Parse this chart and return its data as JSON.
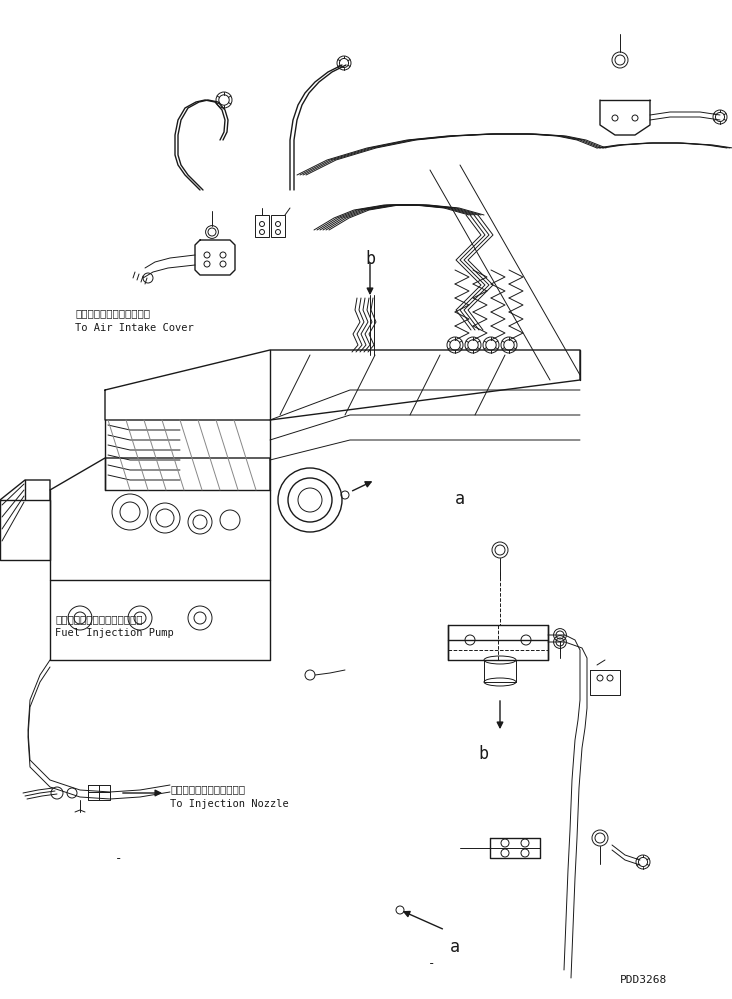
{
  "bg_color": "#ffffff",
  "line_color": "#1a1a1a",
  "fig_width": 7.32,
  "fig_height": 9.99,
  "dpi": 100,
  "label_air_intake_jp": "エアーインテークカバーヘ",
  "label_air_intake_en": "To Air Intake Cover",
  "label_fuel_pump_jp": "フェルインジェクションポンプ",
  "label_fuel_pump_en": "Fuel Injection Pump",
  "label_nozzle_jp": "インジェクションノズルヘ",
  "label_nozzle_en": "To Injection Nozzle",
  "label_a": "a",
  "label_b": "b",
  "watermark": "PDD3268",
  "note_minus1": "-",
  "note_minus2": "-"
}
